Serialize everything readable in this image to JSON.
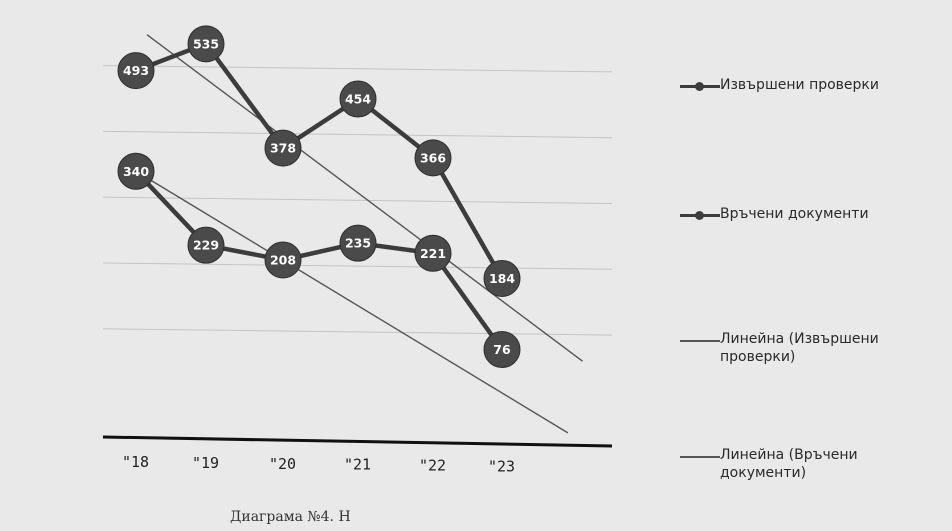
{
  "chart_data": {
    "type": "line",
    "categories": [
      "\"18",
      "\"19",
      "\"20",
      "\"21",
      "\"22",
      "\"23"
    ],
    "series": [
      {
        "name": "Извършени проверки",
        "values": [
          493,
          535,
          378,
          454,
          366,
          184
        ]
      },
      {
        "name": "Връчени документи",
        "values": [
          340,
          229,
          208,
          235,
          221,
          76
        ]
      }
    ],
    "trendlines": [
      {
        "name": "Линейна (Извършени проверки)",
        "start": 560,
        "end": 150
      },
      {
        "name": "Линейна (Връчени документи)",
        "start": 340,
        "end": 10
      }
    ],
    "ylim": [
      0,
      600
    ],
    "grid": true,
    "legend_position": "right",
    "colors": {
      "series": "#3c3c3c",
      "marker": "#4a4a4a",
      "trend": "#555555",
      "grid": "#c4c4c4",
      "axis": "#111111"
    }
  },
  "caption": "Диаграма №4. Н"
}
